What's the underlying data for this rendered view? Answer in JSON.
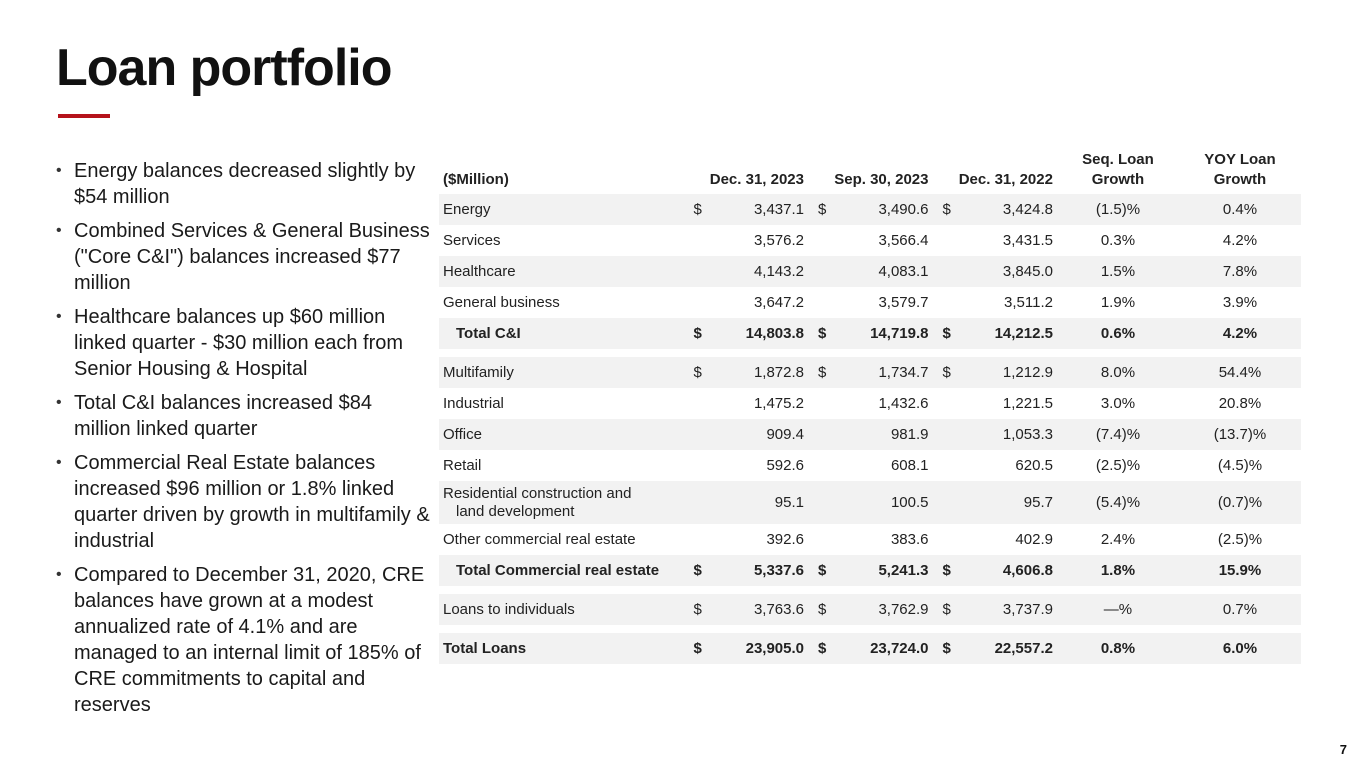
{
  "title": "Loan portfolio",
  "colors": {
    "accent": "#b5121b",
    "row_shade": "#f2f2f2"
  },
  "bullets": [
    "Energy balances decreased slightly by $54 million",
    "Combined Services & General Business (\"Core C&I\") balances increased $77 million",
    "Healthcare balances up $60 million linked quarter - $30 million each from Senior Housing & Hospital",
    "Total C&I balances increased $84 million linked quarter",
    "Commercial Real Estate balances increased $96 million or 1.8% linked quarter driven by growth in multifamily & industrial",
    "Compared to December 31, 2020, CRE balances have grown at a modest annualized rate of 4.1% and are managed to an internal limit of 185% of CRE commitments to capital and reserves"
  ],
  "table": {
    "headers": {
      "label": "($Million)",
      "dec2023": "Dec. 31, 2023",
      "sep2023": "Sep. 30, 2023",
      "dec2022": "Dec. 31, 2022",
      "seq_line1": "Seq. Loan",
      "seq_line2": "Growth",
      "yoy_line1": "YOY Loan",
      "yoy_line2": "Growth"
    },
    "rows": [
      {
        "label": "Energy",
        "sym1": "$",
        "v1": "3,437.1",
        "sym2": "$",
        "v2": "3,490.6",
        "sym3": "$",
        "v3": "3,424.8",
        "seq": "(1.5)%",
        "yoy": "0.4%"
      },
      {
        "label": "Services",
        "sym1": "",
        "v1": "3,576.2",
        "sym2": "",
        "v2": "3,566.4",
        "sym3": "",
        "v3": "3,431.5",
        "seq": "0.3%",
        "yoy": "4.2%"
      },
      {
        "label": "Healthcare",
        "sym1": "",
        "v1": "4,143.2",
        "sym2": "",
        "v2": "4,083.1",
        "sym3": "",
        "v3": "3,845.0",
        "seq": "1.5%",
        "yoy": "7.8%"
      },
      {
        "label": "General business",
        "sym1": "",
        "v1": "3,647.2",
        "sym2": "",
        "v2": "3,579.7",
        "sym3": "",
        "v3": "3,511.2",
        "seq": "1.9%",
        "yoy": "3.9%"
      },
      {
        "label": "Total C&I",
        "sym1": "$",
        "v1": "14,803.8",
        "sym2": "$",
        "v2": "14,719.8",
        "sym3": "$",
        "v3": "14,212.5",
        "seq": "0.6%",
        "yoy": "4.2%"
      },
      {
        "label": "Multifamily",
        "sym1": "$",
        "v1": "1,872.8",
        "sym2": "$",
        "v2": "1,734.7",
        "sym3": "$",
        "v3": "1,212.9",
        "seq": "8.0%",
        "yoy": "54.4%"
      },
      {
        "label": "Industrial",
        "sym1": "",
        "v1": "1,475.2",
        "sym2": "",
        "v2": "1,432.6",
        "sym3": "",
        "v3": "1,221.5",
        "seq": "3.0%",
        "yoy": "20.8%"
      },
      {
        "label": "Office",
        "sym1": "",
        "v1": "909.4",
        "sym2": "",
        "v2": "981.9",
        "sym3": "",
        "v3": "1,053.3",
        "seq": "(7.4)%",
        "yoy": "(13.7)%"
      },
      {
        "label": "Retail",
        "sym1": "",
        "v1": "592.6",
        "sym2": "",
        "v2": "608.1",
        "sym3": "",
        "v3": "620.5",
        "seq": "(2.5)%",
        "yoy": "(4.5)%"
      },
      {
        "label_line1": "Residential construction and",
        "label_line2": "land development",
        "sym1": "",
        "v1": "95.1",
        "sym2": "",
        "v2": "100.5",
        "sym3": "",
        "v3": "95.7",
        "seq": "(5.4)%",
        "yoy": "(0.7)%"
      },
      {
        "label": "Other commercial real estate",
        "sym1": "",
        "v1": "392.6",
        "sym2": "",
        "v2": "383.6",
        "sym3": "",
        "v3": "402.9",
        "seq": "2.4%",
        "yoy": "(2.5)%"
      },
      {
        "label": "Total Commercial real estate",
        "sym1": "$",
        "v1": "5,337.6",
        "sym2": "$",
        "v2": "5,241.3",
        "sym3": "$",
        "v3": "4,606.8",
        "seq": "1.8%",
        "yoy": "15.9%"
      },
      {
        "label": "Loans to individuals",
        "sym1": "$",
        "v1": "3,763.6",
        "sym2": "$",
        "v2": "3,762.9",
        "sym3": "$",
        "v3": "3,737.9",
        "seq": "—%",
        "yoy": "0.7%"
      },
      {
        "label": "Total Loans",
        "sym1": "$",
        "v1": "23,905.0",
        "sym2": "$",
        "v2": "23,724.0",
        "sym3": "$",
        "v3": "22,557.2",
        "seq": "0.8%",
        "yoy": "6.0%"
      }
    ]
  },
  "page_number": "7"
}
